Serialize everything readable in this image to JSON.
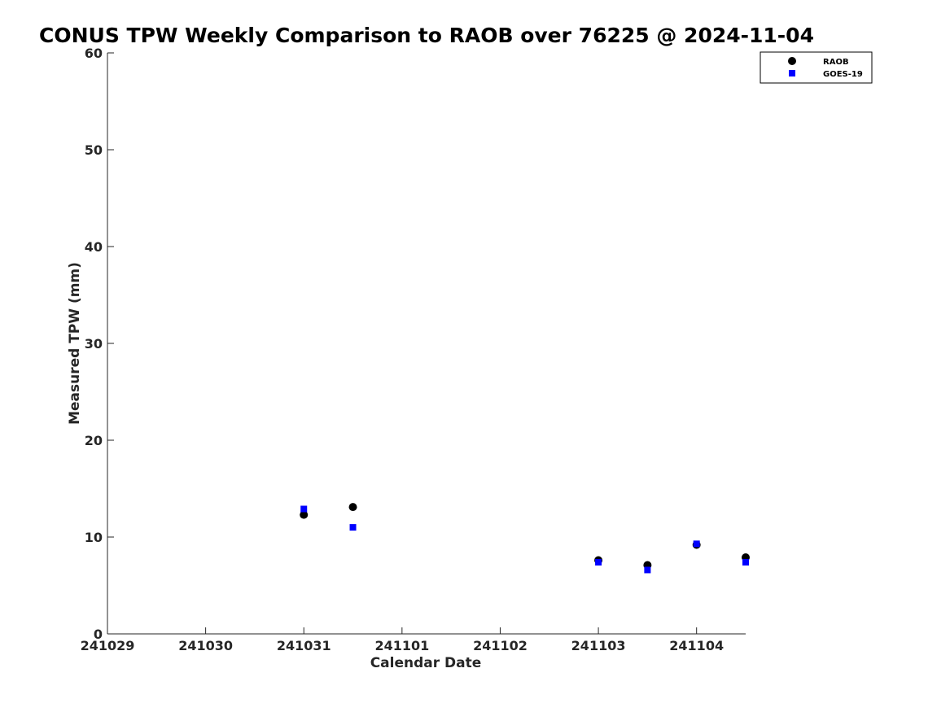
{
  "chart_data": {
    "type": "scatter",
    "title": "CONUS TPW Weekly Comparison to RAOB over 76225 @ 2024-11-04",
    "xlabel": "Calendar Date",
    "ylabel": "Measured TPW (mm)",
    "xlim": [
      "2024-10-29",
      "2024-11-04 12:00"
    ],
    "ylim": [
      0,
      60
    ],
    "x_ticks": [
      "2024-10-29",
      "2024-10-30",
      "2024-10-31",
      "2024-11-01",
      "2024-11-02",
      "2024-11-03",
      "2024-11-04"
    ],
    "x_tick_labels": [
      "241029",
      "241030",
      "241031",
      "241101",
      "241102",
      "241103",
      "241104"
    ],
    "y_ticks": [
      0,
      10,
      20,
      30,
      40,
      50,
      60
    ],
    "grid": false,
    "legend_position": "top-right",
    "series": [
      {
        "name": "RAOB",
        "marker": "circle",
        "color": "#000000",
        "points": [
          {
            "x": "2024-10-31 00:00",
            "y": 12.3
          },
          {
            "x": "2024-10-31 12:00",
            "y": 13.1
          },
          {
            "x": "2024-11-03 00:00",
            "y": 7.6
          },
          {
            "x": "2024-11-03 12:00",
            "y": 7.1
          },
          {
            "x": "2024-11-04 00:00",
            "y": 9.2
          },
          {
            "x": "2024-11-04 12:00",
            "y": 7.9
          }
        ]
      },
      {
        "name": "GOES-19",
        "marker": "square",
        "color": "#0000ff",
        "points": [
          {
            "x": "2024-10-31 00:00",
            "y": 12.9
          },
          {
            "x": "2024-10-31 12:00",
            "y": 11.0
          },
          {
            "x": "2024-11-03 00:00",
            "y": 7.4
          },
          {
            "x": "2024-11-03 12:00",
            "y": 6.6
          },
          {
            "x": "2024-11-04 00:00",
            "y": 9.3
          },
          {
            "x": "2024-11-04 12:00",
            "y": 7.4
          }
        ]
      }
    ]
  }
}
